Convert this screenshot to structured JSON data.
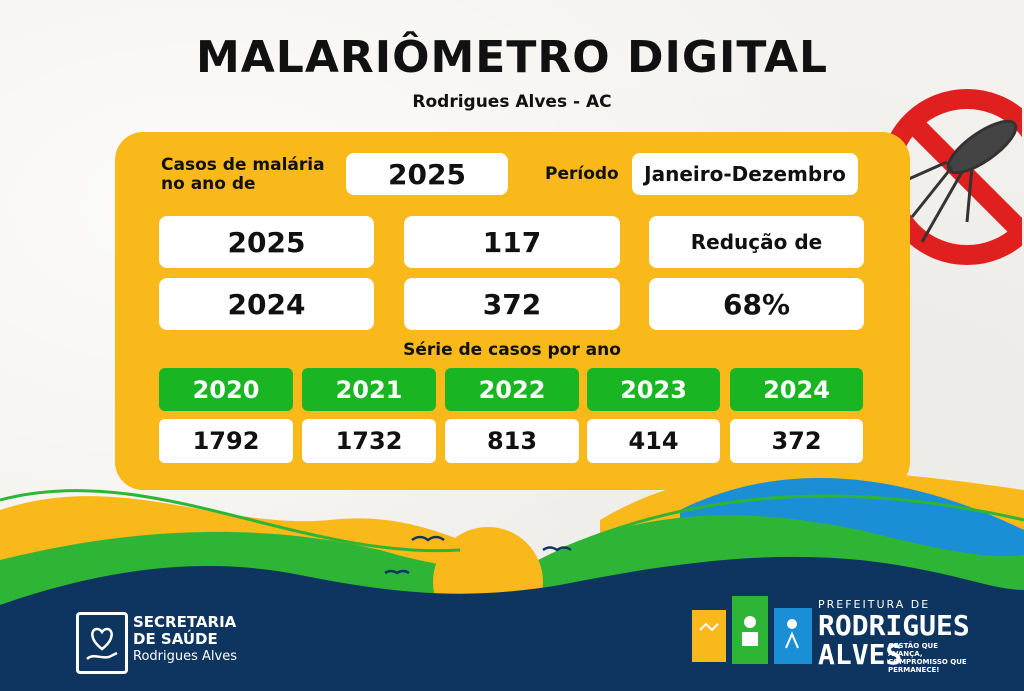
{
  "header": {
    "title": "MALARIÔMETRO DIGITAL",
    "subtitle": "Rodrigues Alves - AC"
  },
  "summary": {
    "cases_label": "Casos de malária no ano de",
    "cases_year": "2025",
    "period_label": "Período",
    "period_value": "Janeiro-Dezembro",
    "rows": [
      {
        "year": "2025",
        "cases": "117"
      },
      {
        "year": "2024",
        "cases": "372"
      }
    ],
    "reduction_label": "Redução de",
    "reduction_value": "68%"
  },
  "series": {
    "title": "Série de casos por ano",
    "years": [
      "2020",
      "2021",
      "2022",
      "2023",
      "2024"
    ],
    "values": [
      "1792",
      "1732",
      "813",
      "414",
      "372"
    ]
  },
  "footer": {
    "secretaria_line1": "SECRETARIA",
    "secretaria_line2": "DE SAÚDE",
    "secretaria_line3": "Rodrigues Alves",
    "prefeitura_line1": "PREFEITURA DE",
    "prefeitura_line2": "RODRIGUES",
    "prefeitura_line3": "ALVES",
    "prefeitura_slogan": "GESTÃO QUE AVANÇA, COMPROMISSO QUE PERMANECE!"
  },
  "colors": {
    "panel": "#f9b91b",
    "green": "#19b522",
    "navy": "#0d3560",
    "blue": "#1b8fd6",
    "red": "#e0201e"
  },
  "icons": [
    "mosquito-prohibited-icon",
    "heart-hand-icon",
    "sun-icon",
    "bird-icon"
  ]
}
